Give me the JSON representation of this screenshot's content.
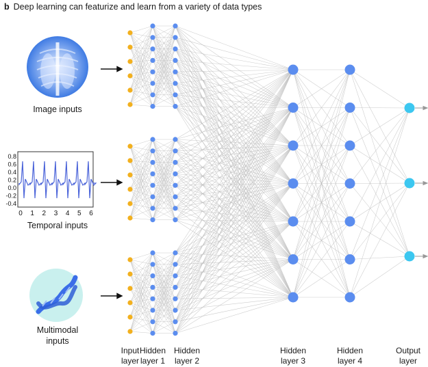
{
  "figure": {
    "panel_label": "b",
    "title": "Deep learning can featurize and learn from a variety of data types"
  },
  "inputs": [
    {
      "caption": "Image inputs",
      "icon": "chest-xray-icon"
    },
    {
      "caption": "Temporal inputs",
      "icon": "waveform-plot-icon"
    },
    {
      "caption_line1": "Multimodal",
      "caption_line2": "inputs",
      "icon": "dna-helix-icon"
    }
  ],
  "temporal_plot": {
    "y_ticks": [
      "0.8",
      "0.6",
      "0.4",
      "0.2",
      "0.0",
      "-0.2",
      "-0.4"
    ],
    "x_ticks": [
      "0",
      "1",
      "2",
      "3",
      "4",
      "5",
      "6"
    ]
  },
  "layers": [
    {
      "line1": "Input",
      "line2": "layer"
    },
    {
      "line1": "Hidden",
      "line2": "layer 1"
    },
    {
      "line1": "Hidden",
      "line2": "layer 2"
    },
    {
      "line1": "Hidden",
      "line2": "layer 3"
    },
    {
      "line1": "Hidden",
      "line2": "layer 4"
    },
    {
      "line1": "Output",
      "line2": "layer"
    }
  ],
  "colors": {
    "input_node": "#f2b01e",
    "hidden_node": "#5b8def",
    "output_node": "#3cc7f0",
    "edge": "#b9b9b9",
    "xray": "#4a86e8",
    "waveform": "#4a63d9",
    "dna_bg": "#c9f0ee",
    "dna": "#3a6ee8"
  }
}
